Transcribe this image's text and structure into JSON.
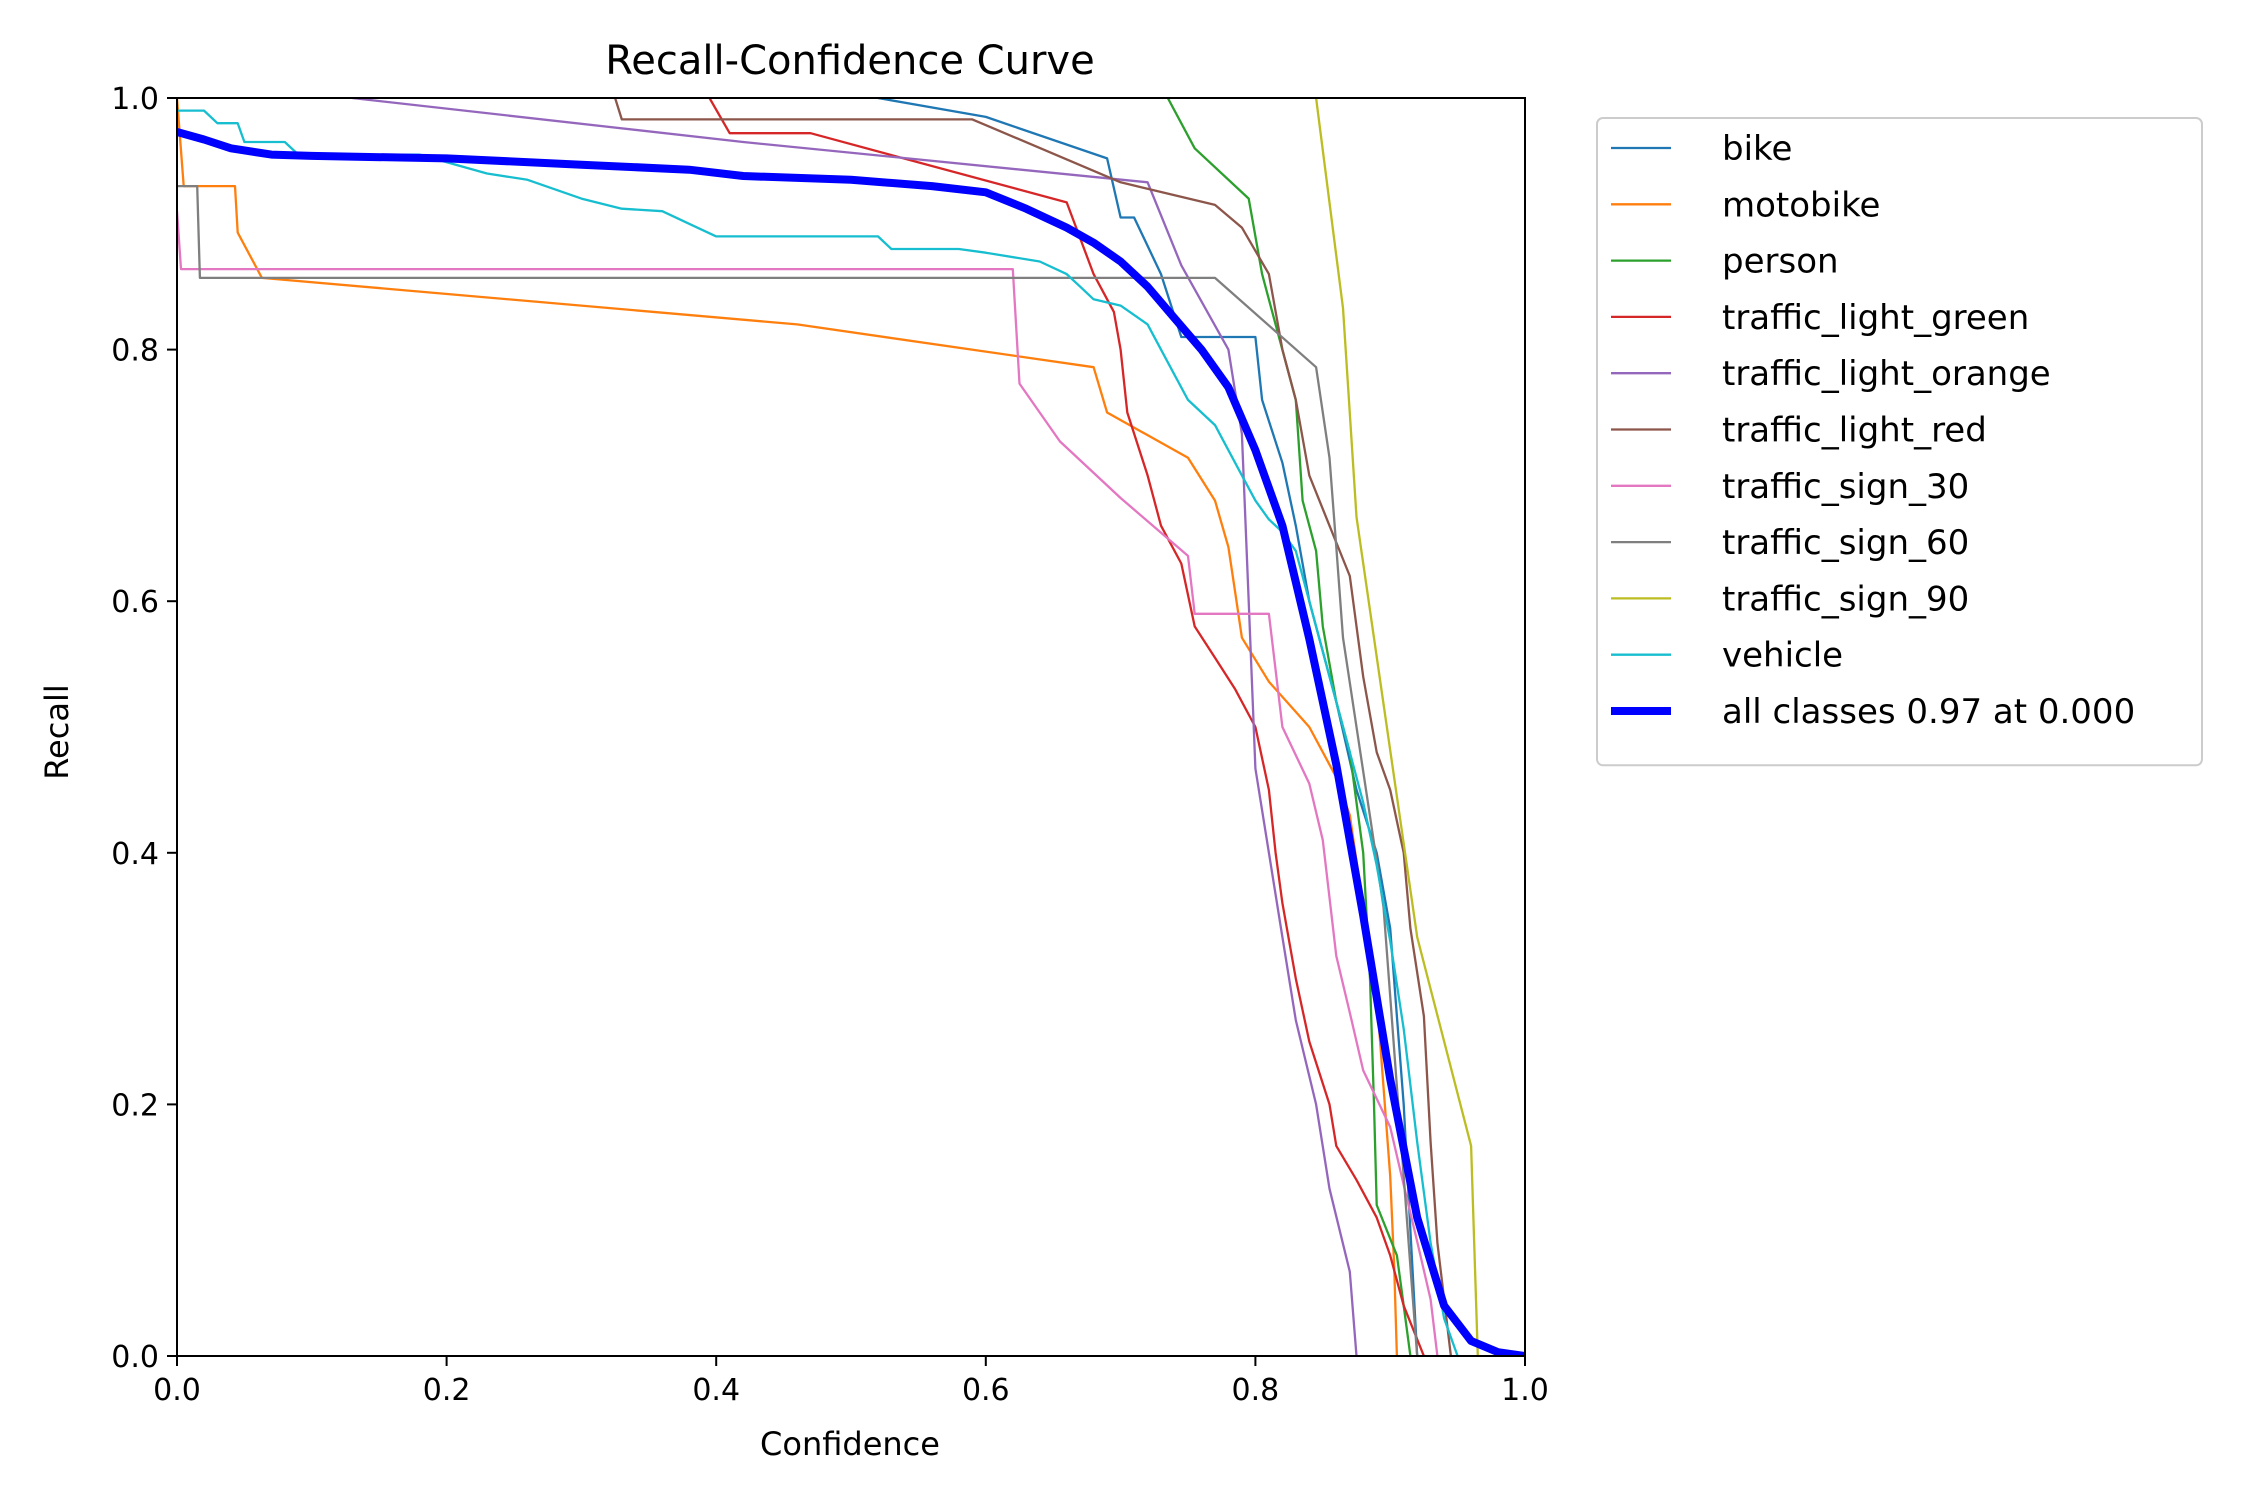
{
  "chart_data": {
    "type": "line",
    "title": "Recall-Confidence Curve",
    "xlabel": "Confidence",
    "ylabel": "Recall",
    "xlim": [
      0,
      1
    ],
    "ylim": [
      0,
      1
    ],
    "xticks": [
      "0.0",
      "0.2",
      "0.4",
      "0.6",
      "0.8",
      "1.0"
    ],
    "yticks": [
      "0.0",
      "0.2",
      "0.4",
      "0.6",
      "0.8",
      "1.0"
    ],
    "grid": false,
    "legend_position": "outside-top-right",
    "series": [
      {
        "name": "bike",
        "color": "#1f77b4",
        "points": [
          [
            0.52,
            1.0
          ],
          [
            0.6,
            0.985
          ],
          [
            0.69,
            0.952
          ],
          [
            0.7,
            0.905
          ],
          [
            0.71,
            0.905
          ],
          [
            0.73,
            0.86
          ],
          [
            0.745,
            0.81
          ],
          [
            0.8,
            0.81
          ],
          [
            0.805,
            0.76
          ],
          [
            0.82,
            0.71
          ],
          [
            0.83,
            0.66
          ],
          [
            0.84,
            0.6
          ],
          [
            0.86,
            0.52
          ],
          [
            0.875,
            0.45
          ],
          [
            0.89,
            0.4
          ],
          [
            0.9,
            0.34
          ],
          [
            0.905,
            0.27
          ],
          [
            0.91,
            0.2
          ],
          [
            0.915,
            0.1
          ],
          [
            0.92,
            0.0
          ]
        ]
      },
      {
        "name": "motobike",
        "color": "#ff7f0e",
        "points": [
          [
            0.0,
            1.0
          ],
          [
            0.005,
            0.93
          ],
          [
            0.043,
            0.93
          ],
          [
            0.045,
            0.893
          ],
          [
            0.063,
            0.857
          ],
          [
            0.46,
            0.82
          ],
          [
            0.68,
            0.786
          ],
          [
            0.69,
            0.75
          ],
          [
            0.75,
            0.714
          ],
          [
            0.77,
            0.68
          ],
          [
            0.78,
            0.643
          ],
          [
            0.785,
            0.607
          ],
          [
            0.79,
            0.571
          ],
          [
            0.81,
            0.536
          ],
          [
            0.84,
            0.5
          ],
          [
            0.86,
            0.46
          ],
          [
            0.87,
            0.43
          ],
          [
            0.88,
            0.357
          ],
          [
            0.89,
            0.286
          ],
          [
            0.895,
            0.214
          ],
          [
            0.9,
            0.143
          ],
          [
            0.903,
            0.071
          ],
          [
            0.905,
            0.0
          ]
        ]
      },
      {
        "name": "person",
        "color": "#2ca02c",
        "points": [
          [
            0.735,
            1.0
          ],
          [
            0.755,
            0.96
          ],
          [
            0.795,
            0.92
          ],
          [
            0.805,
            0.86
          ],
          [
            0.815,
            0.82
          ],
          [
            0.83,
            0.76
          ],
          [
            0.835,
            0.68
          ],
          [
            0.845,
            0.64
          ],
          [
            0.85,
            0.58
          ],
          [
            0.86,
            0.52
          ],
          [
            0.87,
            0.48
          ],
          [
            0.88,
            0.4
          ],
          [
            0.885,
            0.3
          ],
          [
            0.888,
            0.2
          ],
          [
            0.89,
            0.12
          ],
          [
            0.905,
            0.08
          ],
          [
            0.91,
            0.04
          ],
          [
            0.915,
            0.0
          ]
        ]
      },
      {
        "name": "traffic_light_green",
        "color": "#d62728",
        "points": [
          [
            0.395,
            1.0
          ],
          [
            0.41,
            0.972
          ],
          [
            0.47,
            0.972
          ],
          [
            0.66,
            0.917
          ],
          [
            0.68,
            0.86
          ],
          [
            0.695,
            0.83
          ],
          [
            0.7,
            0.8
          ],
          [
            0.705,
            0.75
          ],
          [
            0.72,
            0.7
          ],
          [
            0.73,
            0.66
          ],
          [
            0.745,
            0.63
          ],
          [
            0.755,
            0.58
          ],
          [
            0.77,
            0.555
          ],
          [
            0.785,
            0.53
          ],
          [
            0.8,
            0.5
          ],
          [
            0.81,
            0.45
          ],
          [
            0.815,
            0.4
          ],
          [
            0.82,
            0.36
          ],
          [
            0.83,
            0.3
          ],
          [
            0.84,
            0.25
          ],
          [
            0.855,
            0.2
          ],
          [
            0.86,
            0.167
          ],
          [
            0.875,
            0.14
          ],
          [
            0.89,
            0.11
          ],
          [
            0.9,
            0.08
          ],
          [
            0.91,
            0.04
          ],
          [
            0.925,
            0.0
          ]
        ]
      },
      {
        "name": "traffic_light_orange",
        "color": "#9467bd",
        "points": [
          [
            0.13,
            1.0
          ],
          [
            0.42,
            0.965
          ],
          [
            0.72,
            0.933
          ],
          [
            0.745,
            0.867
          ],
          [
            0.78,
            0.8
          ],
          [
            0.79,
            0.733
          ],
          [
            0.795,
            0.6
          ],
          [
            0.8,
            0.467
          ],
          [
            0.81,
            0.4
          ],
          [
            0.82,
            0.333
          ],
          [
            0.83,
            0.267
          ],
          [
            0.845,
            0.2
          ],
          [
            0.855,
            0.133
          ],
          [
            0.87,
            0.067
          ],
          [
            0.875,
            0.0
          ]
        ]
      },
      {
        "name": "traffic_light_red",
        "color": "#8c564b",
        "points": [
          [
            0.325,
            1.0
          ],
          [
            0.33,
            0.983
          ],
          [
            0.59,
            0.983
          ],
          [
            0.7,
            0.933
          ],
          [
            0.77,
            0.915
          ],
          [
            0.79,
            0.897
          ],
          [
            0.81,
            0.86
          ],
          [
            0.82,
            0.8
          ],
          [
            0.83,
            0.76
          ],
          [
            0.84,
            0.7
          ],
          [
            0.855,
            0.66
          ],
          [
            0.87,
            0.62
          ],
          [
            0.88,
            0.54
          ],
          [
            0.89,
            0.48
          ],
          [
            0.9,
            0.45
          ],
          [
            0.91,
            0.4
          ],
          [
            0.915,
            0.34
          ],
          [
            0.925,
            0.27
          ],
          [
            0.93,
            0.17
          ],
          [
            0.935,
            0.09
          ],
          [
            0.945,
            0.0
          ]
        ]
      },
      {
        "name": "traffic_sign_30",
        "color": "#e377c2",
        "points": [
          [
            0.0,
            0.91
          ],
          [
            0.003,
            0.864
          ],
          [
            0.62,
            0.864
          ],
          [
            0.625,
            0.773
          ],
          [
            0.655,
            0.727
          ],
          [
            0.7,
            0.682
          ],
          [
            0.75,
            0.636
          ],
          [
            0.755,
            0.59
          ],
          [
            0.81,
            0.59
          ],
          [
            0.82,
            0.5
          ],
          [
            0.84,
            0.455
          ],
          [
            0.85,
            0.41
          ],
          [
            0.86,
            0.318
          ],
          [
            0.87,
            0.273
          ],
          [
            0.88,
            0.227
          ],
          [
            0.9,
            0.182
          ],
          [
            0.91,
            0.136
          ],
          [
            0.92,
            0.091
          ],
          [
            0.93,
            0.045
          ],
          [
            0.935,
            0.0
          ]
        ]
      },
      {
        "name": "traffic_sign_60",
        "color": "#7f7f7f",
        "points": [
          [
            0.0,
            0.93
          ],
          [
            0.015,
            0.93
          ],
          [
            0.017,
            0.857
          ],
          [
            0.77,
            0.857
          ],
          [
            0.845,
            0.786
          ],
          [
            0.855,
            0.714
          ],
          [
            0.86,
            0.643
          ],
          [
            0.865,
            0.571
          ],
          [
            0.875,
            0.5
          ],
          [
            0.885,
            0.429
          ],
          [
            0.895,
            0.357
          ],
          [
            0.9,
            0.286
          ],
          [
            0.905,
            0.214
          ],
          [
            0.91,
            0.143
          ],
          [
            0.915,
            0.071
          ],
          [
            0.92,
            0.0
          ]
        ]
      },
      {
        "name": "traffic_sign_90",
        "color": "#bcbd22",
        "points": [
          [
            0.845,
            1.0
          ],
          [
            0.865,
            0.833
          ],
          [
            0.875,
            0.667
          ],
          [
            0.92,
            0.333
          ],
          [
            0.96,
            0.167
          ],
          [
            0.965,
            0.0
          ]
        ]
      },
      {
        "name": "vehicle",
        "color": "#17becf",
        "points": [
          [
            0.0,
            0.99
          ],
          [
            0.02,
            0.99
          ],
          [
            0.03,
            0.98
          ],
          [
            0.045,
            0.98
          ],
          [
            0.05,
            0.965
          ],
          [
            0.08,
            0.965
          ],
          [
            0.09,
            0.955
          ],
          [
            0.18,
            0.955
          ],
          [
            0.23,
            0.94
          ],
          [
            0.26,
            0.935
          ],
          [
            0.3,
            0.92
          ],
          [
            0.33,
            0.912
          ],
          [
            0.36,
            0.91
          ],
          [
            0.38,
            0.9
          ],
          [
            0.4,
            0.89
          ],
          [
            0.52,
            0.89
          ],
          [
            0.53,
            0.88
          ],
          [
            0.58,
            0.88
          ],
          [
            0.6,
            0.877
          ],
          [
            0.64,
            0.87
          ],
          [
            0.66,
            0.86
          ],
          [
            0.67,
            0.85
          ],
          [
            0.68,
            0.84
          ],
          [
            0.7,
            0.835
          ],
          [
            0.72,
            0.82
          ],
          [
            0.73,
            0.8
          ],
          [
            0.74,
            0.78
          ],
          [
            0.75,
            0.76
          ],
          [
            0.77,
            0.74
          ],
          [
            0.78,
            0.72
          ],
          [
            0.79,
            0.7
          ],
          [
            0.8,
            0.68
          ],
          [
            0.81,
            0.665
          ],
          [
            0.82,
            0.655
          ],
          [
            0.83,
            0.64
          ],
          [
            0.84,
            0.6
          ],
          [
            0.85,
            0.56
          ],
          [
            0.86,
            0.52
          ],
          [
            0.87,
            0.48
          ],
          [
            0.88,
            0.44
          ],
          [
            0.89,
            0.39
          ],
          [
            0.9,
            0.33
          ],
          [
            0.91,
            0.26
          ],
          [
            0.92,
            0.17
          ],
          [
            0.93,
            0.09
          ],
          [
            0.94,
            0.03
          ],
          [
            0.95,
            0.0
          ]
        ]
      },
      {
        "name": "all classes 0.97 at 0.000",
        "color": "#0000ff",
        "bold": true,
        "points": [
          [
            0.0,
            0.973
          ],
          [
            0.02,
            0.967
          ],
          [
            0.04,
            0.96
          ],
          [
            0.07,
            0.955
          ],
          [
            0.1,
            0.954
          ],
          [
            0.2,
            0.952
          ],
          [
            0.3,
            0.947
          ],
          [
            0.38,
            0.943
          ],
          [
            0.42,
            0.938
          ],
          [
            0.5,
            0.935
          ],
          [
            0.56,
            0.93
          ],
          [
            0.6,
            0.925
          ],
          [
            0.63,
            0.912
          ],
          [
            0.66,
            0.897
          ],
          [
            0.68,
            0.885
          ],
          [
            0.7,
            0.87
          ],
          [
            0.72,
            0.85
          ],
          [
            0.74,
            0.825
          ],
          [
            0.76,
            0.8
          ],
          [
            0.78,
            0.77
          ],
          [
            0.8,
            0.72
          ],
          [
            0.82,
            0.66
          ],
          [
            0.84,
            0.57
          ],
          [
            0.86,
            0.47
          ],
          [
            0.88,
            0.35
          ],
          [
            0.9,
            0.22
          ],
          [
            0.92,
            0.11
          ],
          [
            0.94,
            0.04
          ],
          [
            0.96,
            0.012
          ],
          [
            0.98,
            0.003
          ],
          [
            1.0,
            0.0
          ]
        ]
      }
    ]
  }
}
